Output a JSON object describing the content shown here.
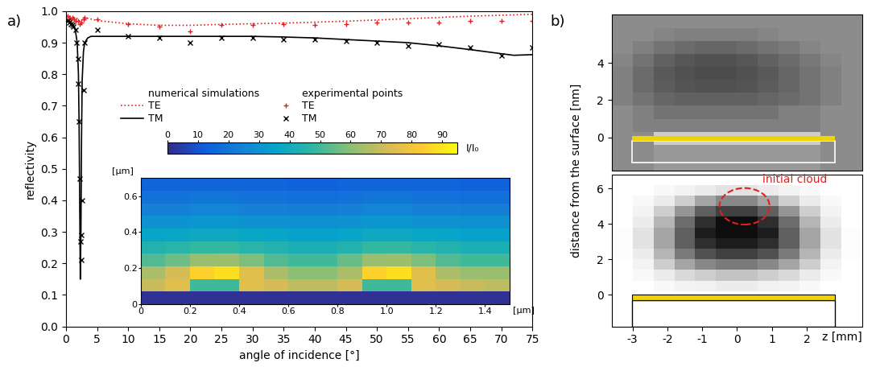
{
  "panel_labels": [
    "a)",
    "b)"
  ],
  "chart_data": [
    {
      "type": "line",
      "xlabel": "angle of incidence [°]",
      "ylabel": "reflectivity",
      "xlim": [
        0,
        75
      ],
      "xticks": [
        0,
        5,
        10,
        15,
        20,
        25,
        30,
        35,
        40,
        45,
        50,
        55,
        60,
        65,
        70,
        75
      ],
      "ylim": [
        0.0,
        1.0
      ],
      "yticks": [
        0.0,
        0.1,
        0.2,
        0.3,
        0.4,
        0.5,
        0.6,
        0.7,
        0.8,
        0.9,
        1.0
      ],
      "legend": "lower center",
      "legend_headers": [
        "numerical simulations",
        "experimental points"
      ],
      "series": [
        {
          "name": "TE",
          "type": "line",
          "line_style": "dotted",
          "color": "#e02020",
          "x": [
            0,
            1,
            2,
            2.3,
            2.6,
            3,
            4,
            5,
            10,
            15,
            20,
            25,
            30,
            35,
            40,
            45,
            50,
            55,
            60,
            65,
            70,
            75
          ],
          "values": [
            0.985,
            0.982,
            0.975,
            0.96,
            0.975,
            0.98,
            0.975,
            0.97,
            0.96,
            0.955,
            0.955,
            0.958,
            0.96,
            0.962,
            0.965,
            0.968,
            0.972,
            0.976,
            0.98,
            0.984,
            0.987,
            0.99
          ]
        },
        {
          "name": "TM",
          "type": "line",
          "line_style": "solid",
          "color": "#000000",
          "x": [
            0,
            0.5,
            1,
            1.5,
            1.8,
            2.0,
            2.1,
            2.2,
            2.3,
            2.4,
            2.5,
            2.6,
            2.8,
            3.0,
            3.5,
            4,
            5,
            10,
            15,
            20,
            25,
            30,
            35,
            40,
            45,
            50,
            55,
            60,
            65,
            70,
            72,
            75
          ],
          "values": [
            0.975,
            0.97,
            0.96,
            0.94,
            0.9,
            0.8,
            0.65,
            0.4,
            0.15,
            0.3,
            0.6,
            0.78,
            0.87,
            0.9,
            0.915,
            0.92,
            0.92,
            0.92,
            0.92,
            0.92,
            0.92,
            0.92,
            0.918,
            0.915,
            0.91,
            0.905,
            0.9,
            0.89,
            0.878,
            0.865,
            0.86,
            0.862
          ]
        },
        {
          "name": "TE",
          "type": "scatter",
          "marker": "+",
          "color": "#e02020",
          "x": [
            0.2,
            0.5,
            0.8,
            1.0,
            1.3,
            1.6,
            1.9,
            2.2,
            2.5,
            2.8,
            3.0,
            5,
            10,
            15,
            20,
            25,
            30,
            35,
            40,
            45,
            50,
            55,
            60,
            65,
            70,
            75
          ],
          "values": [
            0.985,
            0.98,
            0.975,
            0.98,
            0.975,
            0.97,
            0.97,
            0.96,
            0.965,
            0.975,
            0.98,
            0.975,
            0.96,
            0.95,
            0.935,
            0.955,
            0.955,
            0.96,
            0.955,
            0.96,
            0.965,
            0.965,
            0.965,
            0.97,
            0.97,
            0.97
          ]
        },
        {
          "name": "TM",
          "type": "scatter",
          "marker": "x",
          "color": "#000000",
          "x": [
            0.2,
            0.5,
            0.8,
            1.0,
            1.2,
            1.5,
            1.7,
            1.9,
            2.0,
            2.1,
            2.2,
            2.3,
            2.4,
            2.5,
            2.6,
            2.8,
            3.0,
            5,
            10,
            15,
            20,
            25,
            30,
            35,
            40,
            45,
            50,
            55,
            60,
            65,
            70,
            75
          ],
          "values": [
            0.97,
            0.965,
            0.96,
            0.955,
            0.95,
            0.94,
            0.9,
            0.85,
            0.77,
            0.65,
            0.47,
            0.27,
            0.21,
            0.29,
            0.4,
            0.75,
            0.9,
            0.94,
            0.92,
            0.915,
            0.9,
            0.915,
            0.915,
            0.91,
            0.91,
            0.905,
            0.9,
            0.89,
            0.895,
            0.885,
            0.86,
            0.885
          ]
        }
      ]
    },
    {
      "type": "heatmap",
      "xlabel": "[µm]",
      "ylabel": "[µm]",
      "xlim": [
        0,
        1.5
      ],
      "xticks": [
        0,
        0.2,
        0.4,
        0.6,
        0.8,
        1.0,
        1.2,
        1.4
      ],
      "ylim": [
        0,
        0.7
      ],
      "yticks": [
        0,
        0.2,
        0.4,
        0.6
      ],
      "x_edges": [
        0,
        0.1,
        0.2,
        0.3,
        0.4,
        0.5,
        0.6,
        0.7,
        0.8,
        0.9,
        1.0,
        1.1,
        1.2,
        1.3,
        1.4,
        1.5
      ],
      "y_edges": [
        0,
        0.07,
        0.14,
        0.21,
        0.28,
        0.35,
        0.42,
        0.49,
        0.56,
        0.63,
        0.7
      ],
      "cells": [
        [
          2,
          2,
          2,
          2,
          2,
          2,
          2,
          2,
          2,
          2,
          2,
          2,
          2,
          2,
          2
        ],
        [
          70,
          75,
          50,
          50,
          75,
          72,
          68,
          68,
          72,
          50,
          50,
          75,
          72,
          70,
          68
        ],
        [
          65,
          72,
          85,
          88,
          75,
          65,
          60,
          60,
          65,
          85,
          88,
          75,
          65,
          62,
          62
        ],
        [
          52,
          56,
          62,
          63,
          58,
          52,
          50,
          50,
          55,
          62,
          63,
          58,
          52,
          50,
          50
        ],
        [
          44,
          46,
          48,
          48,
          46,
          44,
          42,
          42,
          44,
          48,
          48,
          46,
          44,
          42,
          42
        ],
        [
          36,
          37,
          38,
          38,
          37,
          36,
          35,
          35,
          36,
          38,
          38,
          37,
          36,
          35,
          35
        ],
        [
          30,
          30,
          31,
          31,
          30,
          30,
          29,
          29,
          30,
          31,
          31,
          30,
          30,
          29,
          29
        ],
        [
          24,
          24,
          25,
          25,
          24,
          24,
          23,
          23,
          24,
          25,
          25,
          24,
          24,
          23,
          23
        ],
        [
          19,
          19,
          20,
          20,
          19,
          19,
          18,
          18,
          19,
          20,
          20,
          19,
          19,
          18,
          18
        ],
        [
          15,
          15,
          15,
          15,
          15,
          15,
          14,
          14,
          15,
          15,
          15,
          15,
          15,
          14,
          14
        ]
      ],
      "colorbar": {
        "label": "I/I₀",
        "lim": [
          0,
          95
        ],
        "ticks": [
          0,
          10,
          20,
          30,
          40,
          50,
          60,
          70,
          80,
          90
        ]
      }
    },
    {
      "type": "image",
      "tick_labels": "y",
      "xlim": [
        -3.6,
        3.6
      ],
      "ylim": [
        -1.8,
        6.6
      ],
      "yticks": [
        0,
        2,
        4
      ],
      "color_range": [
        0,
        1
      ],
      "x_edges": [
        -3.6,
        -3.0,
        -2.4,
        -1.8,
        -1.2,
        -0.6,
        0.0,
        0.6,
        1.2,
        1.8,
        2.4,
        3.0,
        3.6
      ],
      "y_edges": [
        -1.8,
        -1.1,
        -0.4,
        0.3,
        1.0,
        1.7,
        2.4,
        3.1,
        3.8,
        4.5,
        5.2,
        5.9,
        6.6
      ],
      "cells": [
        [
          0.55,
          0.55,
          0.6,
          0.6,
          0.6,
          0.6,
          0.6,
          0.6,
          0.6,
          0.6,
          0.55,
          0.55
        ],
        [
          0.55,
          0.55,
          0.6,
          0.6,
          0.6,
          0.6,
          0.6,
          0.6,
          0.6,
          0.6,
          0.55,
          0.55
        ],
        [
          0.55,
          0.55,
          0.8,
          0.8,
          0.8,
          0.8,
          0.8,
          0.8,
          0.8,
          0.8,
          0.55,
          0.55
        ],
        [
          0.55,
          0.5,
          0.5,
          0.5,
          0.5,
          0.5,
          0.5,
          0.5,
          0.5,
          0.5,
          0.55,
          0.55
        ],
        [
          0.55,
          0.5,
          0.45,
          0.45,
          0.45,
          0.45,
          0.45,
          0.45,
          0.5,
          0.5,
          0.55,
          0.55
        ],
        [
          0.5,
          0.45,
          0.4,
          0.38,
          0.38,
          0.38,
          0.38,
          0.4,
          0.42,
          0.45,
          0.5,
          0.55
        ],
        [
          0.5,
          0.42,
          0.36,
          0.33,
          0.32,
          0.32,
          0.33,
          0.36,
          0.4,
          0.45,
          0.5,
          0.55
        ],
        [
          0.5,
          0.42,
          0.35,
          0.32,
          0.3,
          0.3,
          0.32,
          0.35,
          0.4,
          0.45,
          0.5,
          0.55
        ],
        [
          0.52,
          0.45,
          0.38,
          0.34,
          0.32,
          0.32,
          0.34,
          0.38,
          0.42,
          0.47,
          0.52,
          0.55
        ],
        [
          0.55,
          0.5,
          0.45,
          0.42,
          0.4,
          0.4,
          0.42,
          0.45,
          0.48,
          0.52,
          0.55,
          0.55
        ],
        [
          0.55,
          0.55,
          0.52,
          0.5,
          0.5,
          0.5,
          0.5,
          0.52,
          0.55,
          0.55,
          0.55,
          0.55
        ],
        [
          0.55,
          0.55,
          0.55,
          0.55,
          0.55,
          0.55,
          0.55,
          0.55,
          0.55,
          0.55,
          0.55,
          0.55
        ]
      ]
    },
    {
      "type": "density",
      "xlabel": "z [mm]",
      "ylabel": "distance from the surface [nm]",
      "xlim": [
        -3.6,
        3.6
      ],
      "xticks": [
        -3,
        -2,
        -1,
        0,
        1,
        2
      ],
      "ylim": [
        -1.8,
        6.8
      ],
      "yticks": [
        0,
        2,
        4,
        6
      ],
      "color_range": [
        0,
        1
      ],
      "annotations": [
        "initial cloud"
      ],
      "x_edges": [
        -3.6,
        -3.0,
        -2.4,
        -1.8,
        -1.2,
        -0.6,
        0.0,
        0.6,
        1.2,
        1.8,
        2.4,
        3.0,
        3.6
      ],
      "y_edges": [
        -0.4,
        0.2,
        0.8,
        1.4,
        2.0,
        2.6,
        3.2,
        3.8,
        4.4,
        5.0,
        5.6,
        6.2,
        6.8
      ],
      "cells": [
        [
          0,
          0,
          0,
          0,
          0,
          0,
          0,
          0,
          0,
          0,
          0,
          0
        ],
        [
          0,
          0,
          0.05,
          0.1,
          0.12,
          0.15,
          0.15,
          0.12,
          0.1,
          0.05,
          0,
          0
        ],
        [
          0,
          0.05,
          0.15,
          0.25,
          0.3,
          0.35,
          0.35,
          0.3,
          0.25,
          0.15,
          0.05,
          0
        ],
        [
          0,
          0.1,
          0.3,
          0.45,
          0.55,
          0.6,
          0.6,
          0.55,
          0.45,
          0.3,
          0.1,
          0
        ],
        [
          0.02,
          0.15,
          0.4,
          0.6,
          0.75,
          0.8,
          0.8,
          0.75,
          0.6,
          0.4,
          0.15,
          0.02
        ],
        [
          0.02,
          0.2,
          0.45,
          0.7,
          0.85,
          0.9,
          0.9,
          0.85,
          0.7,
          0.45,
          0.2,
          0.02
        ],
        [
          0.02,
          0.2,
          0.45,
          0.7,
          0.9,
          0.95,
          0.95,
          0.9,
          0.7,
          0.45,
          0.2,
          0.02
        ],
        [
          0,
          0.15,
          0.4,
          0.65,
          0.85,
          0.95,
          0.95,
          0.85,
          0.65,
          0.4,
          0.15,
          0
        ],
        [
          0,
          0.1,
          0.3,
          0.5,
          0.7,
          0.8,
          0.8,
          0.7,
          0.5,
          0.3,
          0.1,
          0
        ],
        [
          0,
          0.05,
          0.15,
          0.3,
          0.45,
          0.55,
          0.55,
          0.45,
          0.3,
          0.15,
          0.05,
          0
        ],
        [
          0,
          0,
          0.05,
          0.1,
          0.15,
          0.2,
          0.2,
          0.15,
          0.1,
          0.05,
          0,
          0
        ],
        [
          0,
          0,
          0,
          0,
          0,
          0,
          0,
          0,
          0,
          0,
          0,
          0
        ]
      ]
    }
  ]
}
